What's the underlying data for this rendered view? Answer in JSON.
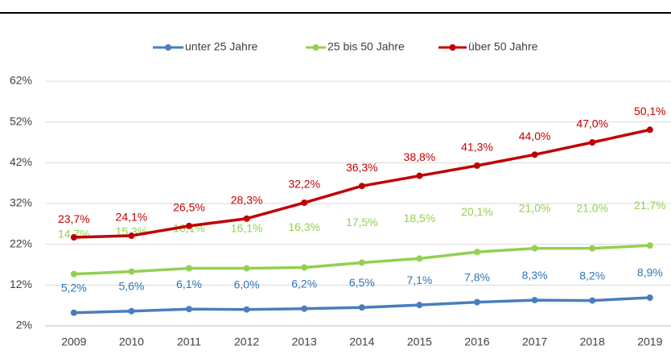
{
  "chart_data": {
    "type": "line",
    "categories": [
      "2009",
      "2010",
      "2011",
      "2012",
      "2013",
      "2014",
      "2015",
      "2016",
      "2017",
      "2018",
      "2019"
    ],
    "series": [
      {
        "name": "unter 25 Jahre",
        "color": "#4a7ebb",
        "label_color": "#2e75b6",
        "values": [
          5.2,
          5.6,
          6.1,
          6.0,
          6.2,
          6.5,
          7.1,
          7.8,
          8.3,
          8.2,
          8.9
        ],
        "value_labels": [
          "5,2%",
          "5,6%",
          "6,1%",
          "6,0%",
          "6,2%",
          "6,5%",
          "7,1%",
          "7,8%",
          "8,3%",
          "8,2%",
          "8,9%"
        ]
      },
      {
        "name": "25 bis 50 Jahre",
        "color": "#92d050",
        "label_color": "#92d050",
        "values": [
          14.7,
          15.3,
          16.1,
          16.1,
          16.3,
          17.5,
          18.5,
          20.1,
          21.0,
          21.0,
          21.7
        ],
        "value_labels": [
          "14,7%",
          "15,3%",
          "16,1%",
          "16,1%",
          "16,3%",
          "17,5%",
          "18,5%",
          "20,1%",
          "21,0%",
          "21,0%",
          "21,7%"
        ]
      },
      {
        "name": "über 50 Jahre",
        "color": "#c00000",
        "label_color": "#c00000",
        "values": [
          23.7,
          24.1,
          26.5,
          28.3,
          32.2,
          36.3,
          38.8,
          41.3,
          44.0,
          47.0,
          50.1
        ],
        "value_labels": [
          "23,7%",
          "24,1%",
          "26,5%",
          "28,3%",
          "32,2%",
          "36,3%",
          "38,8%",
          "41,3%",
          "44,0%",
          "47,0%",
          "50,1%"
        ]
      }
    ],
    "ylim": [
      2,
      62
    ],
    "yticks": [
      {
        "value": 2,
        "label": "2%"
      },
      {
        "value": 12,
        "label": "12%"
      },
      {
        "value": 22,
        "label": "22%"
      },
      {
        "value": 32,
        "label": "32%"
      },
      {
        "value": 42,
        "label": "42%"
      },
      {
        "value": 52,
        "label": "52%"
      },
      {
        "value": 62,
        "label": "62%"
      }
    ],
    "grid": true,
    "legend": "top"
  }
}
